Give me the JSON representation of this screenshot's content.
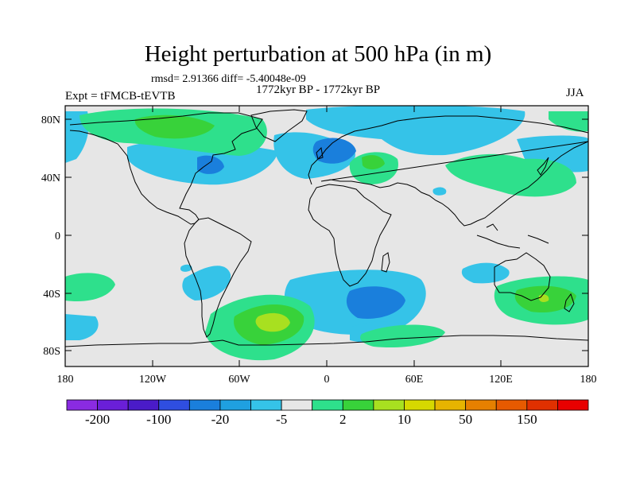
{
  "title": "Height perturbation at 500 hPa (in m)",
  "stats": "rmsd= 2.91366 diff= -5.40048e-09",
  "period": "1772kyr BP - 1772kyr BP",
  "experiment": "Expt = tFMCB-tEVTB",
  "season": "JJA",
  "map": {
    "lat_labels": [
      "80N",
      "40N",
      "0",
      "40S",
      "80S"
    ],
    "lon_labels": [
      "180",
      "120W",
      "60W",
      "0",
      "60E",
      "120E",
      "180"
    ]
  },
  "colorbar": {
    "labels": [
      "-200",
      "-100",
      "-20",
      "-5",
      "2",
      "10",
      "50",
      "150"
    ],
    "colors": [
      "#8a2be2",
      "#6a1fd8",
      "#4a1bc8",
      "#2f4ee0",
      "#1a7fdc",
      "#1fa0e0",
      "#35c3e8",
      "#e6e6e6",
      "#2ee08c",
      "#38d23a",
      "#a8e020",
      "#d6d800",
      "#e6b400",
      "#e68000",
      "#e65a00",
      "#e03000",
      "#e80000"
    ]
  }
}
